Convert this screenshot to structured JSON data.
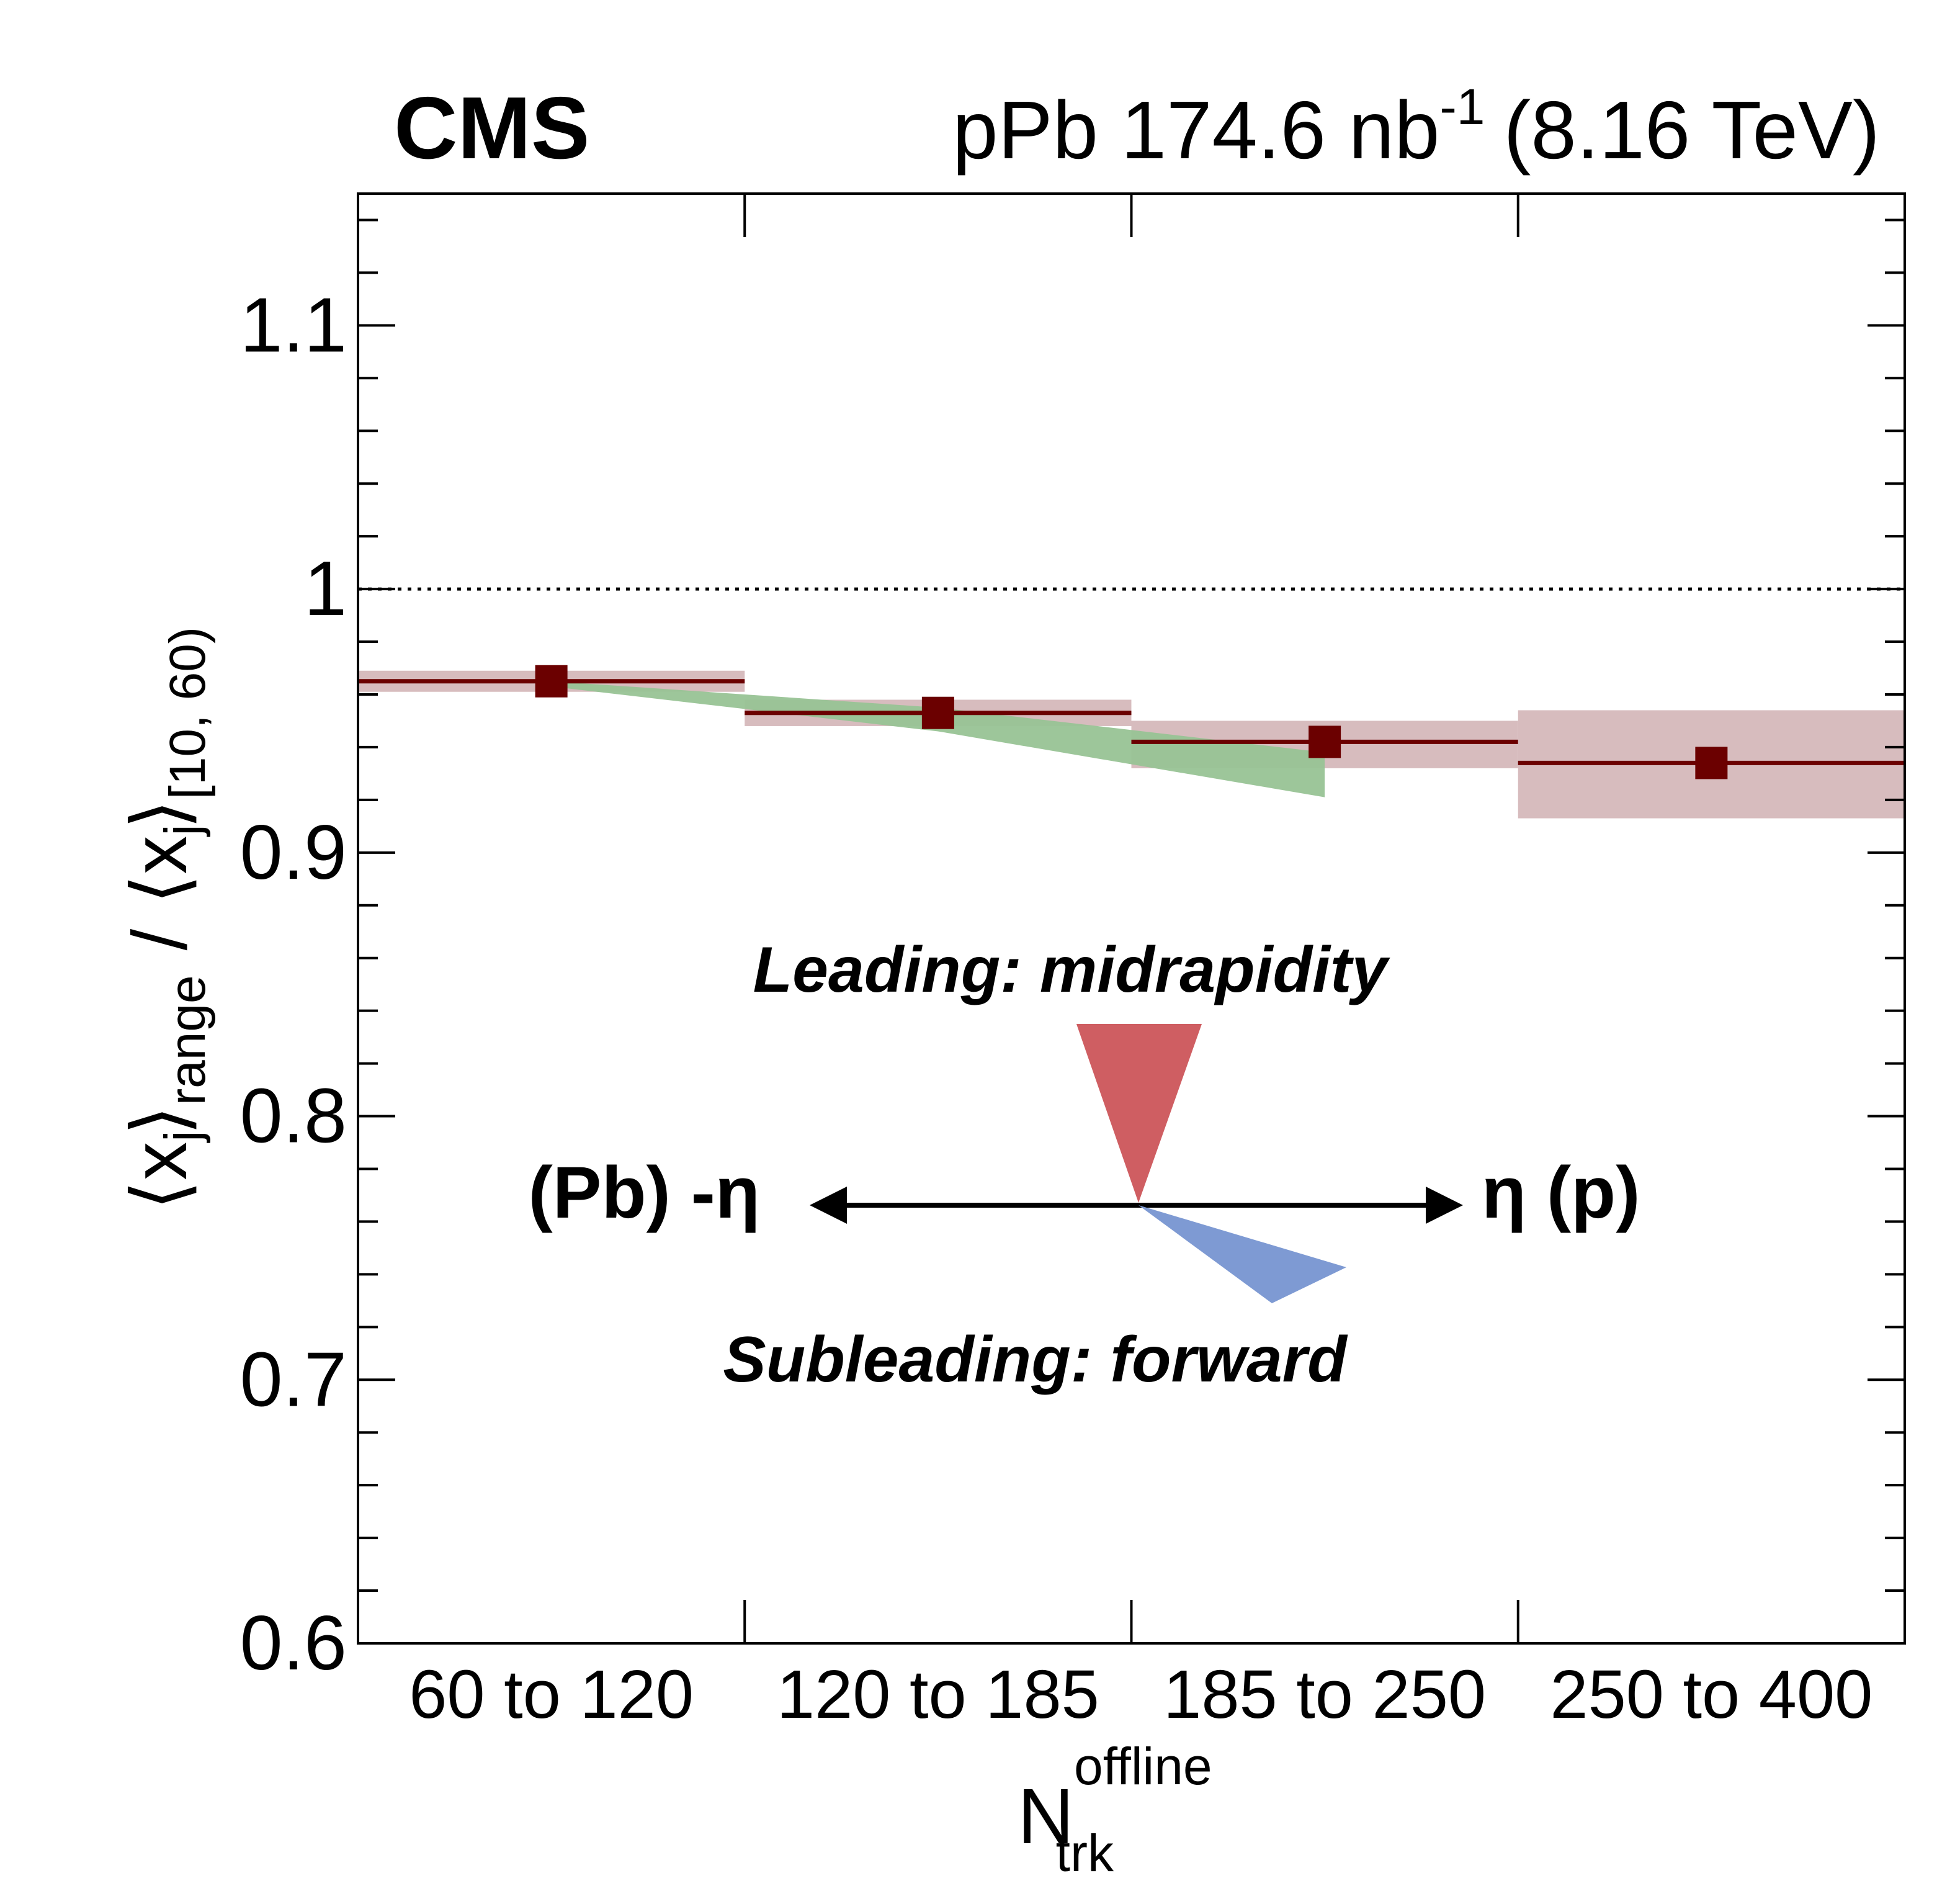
{
  "header": {
    "experiment": "CMS",
    "dataset_prefix": "pPb 174.6 nb",
    "dataset_exp": "-1",
    "energy": "(8.16 TeV)"
  },
  "chart_data": {
    "type": "scatter",
    "categories": [
      "60 to 120",
      "120 to 185",
      "185 to 250",
      "250 to 400"
    ],
    "ylim": [
      0.6,
      1.15
    ],
    "yticks": [
      "0.6",
      "0.7",
      "0.8",
      "0.9",
      "1",
      "1.1"
    ],
    "ytick_values": [
      0.6,
      0.7,
      0.8,
      0.9,
      1.0,
      1.1
    ],
    "reference_line": 1.0,
    "xlabel": {
      "base": "N",
      "sup": "offline",
      "sub": "trk"
    },
    "ylabel": {
      "num_base": "⟨x",
      "num_sub": "j",
      "num_sub2": "range",
      "divider": "/",
      "den_base": "⟨x",
      "den_sub": "j",
      "den_sub2": "[10, 60)"
    },
    "series": [
      {
        "values": [
          0.965,
          0.953,
          0.942,
          0.934
        ],
        "syst_low": [
          0.961,
          0.948,
          0.932,
          0.913
        ],
        "syst_high": [
          0.969,
          0.958,
          0.95,
          0.954
        ],
        "color": "#6b0000",
        "band_color": "#d7bcbe"
      },
      {
        "band_x_fraction": [
          0.5,
          1.5,
          2.5
        ],
        "band_low": [
          0.963,
          0.946,
          0.921
        ],
        "band_high": [
          0.965,
          0.955,
          0.938
        ],
        "color": "#98c395"
      }
    ],
    "annotations": {
      "leading": "Leading: midrapidity",
      "leading_color": "#cf5e62",
      "subleading": "Subleading: forward",
      "subleading_color": "#7e9ad3",
      "left_label": "(Pb) -η",
      "right_label": "η (p)"
    }
  }
}
